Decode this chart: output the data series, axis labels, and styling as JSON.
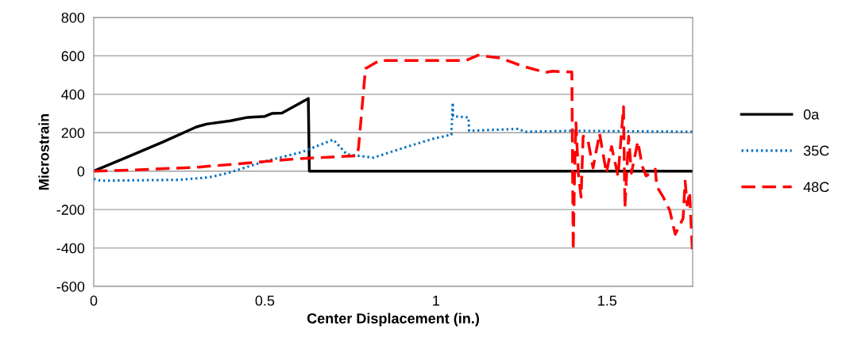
{
  "chart_data": {
    "type": "line",
    "xlabel": "Center Displacement (in.)",
    "ylabel": "Microstrain",
    "xlim": [
      0,
      1.75
    ],
    "xticks": [
      0,
      0.5,
      1,
      1.5
    ],
    "ylim": [
      -600,
      800
    ],
    "yticks": [
      -600,
      -400,
      -200,
      0,
      200,
      400,
      600,
      800
    ],
    "grid": "y",
    "legend": "right",
    "marker": "none",
    "series": [
      {
        "name": "0a",
        "color": "#000000",
        "line_style": "solid",
        "x": [
          0,
          0.1,
          0.2,
          0.3,
          0.33,
          0.4,
          0.45,
          0.5,
          0.52,
          0.55,
          0.627,
          0.63,
          1.75
        ],
        "values": [
          0,
          75,
          150,
          230,
          245,
          262,
          280,
          285,
          300,
          302,
          378,
          0,
          0
        ]
      },
      {
        "name": "35C",
        "color": "#0070c0",
        "line_style": "dotted",
        "x": [
          0,
          0.02,
          0.25,
          0.337,
          0.39,
          0.5,
          0.608,
          0.7,
          0.74,
          0.817,
          0.917,
          0.995,
          1.045,
          1.049,
          1.05,
          1.095,
          1.097,
          1.24,
          1.26,
          1.4,
          1.75
        ],
        "values": [
          -40,
          -50,
          -45,
          -32,
          -11,
          51,
          99,
          164,
          87,
          70,
          128,
          170,
          190,
          356,
          286,
          279,
          210,
          220,
          205,
          210,
          205
        ]
      },
      {
        "name": "48C",
        "color": "#ff0000",
        "line_style": "dashed",
        "x": [
          0,
          0.1,
          0.3,
          0.5,
          0.6,
          0.77,
          0.774,
          0.794,
          0.835,
          1.088,
          1.123,
          1.188,
          1.25,
          1.32,
          1.34,
          1.397,
          1.401,
          1.405,
          1.409,
          1.416,
          1.424,
          1.43,
          1.443,
          1.459,
          1.478,
          1.498,
          1.513,
          1.532,
          1.548,
          1.552,
          1.563,
          1.571,
          1.59,
          1.602,
          1.614,
          1.641,
          1.645,
          1.664,
          1.683,
          1.699,
          1.722,
          1.728,
          1.734,
          1.741,
          1.749
        ],
        "values": [
          0,
          5,
          20,
          50,
          65,
          80,
          128,
          534,
          576,
          576,
          603,
          589,
          548,
          514,
          520,
          516,
          -410,
          -11,
          252,
          -11,
          -135,
          182,
          170,
          17,
          196,
          -11,
          128,
          -25,
          335,
          -190,
          182,
          -11,
          155,
          30,
          -25,
          10,
          -80,
          -135,
          -204,
          -329,
          -246,
          -52,
          -177,
          -108,
          -410
        ]
      }
    ]
  }
}
